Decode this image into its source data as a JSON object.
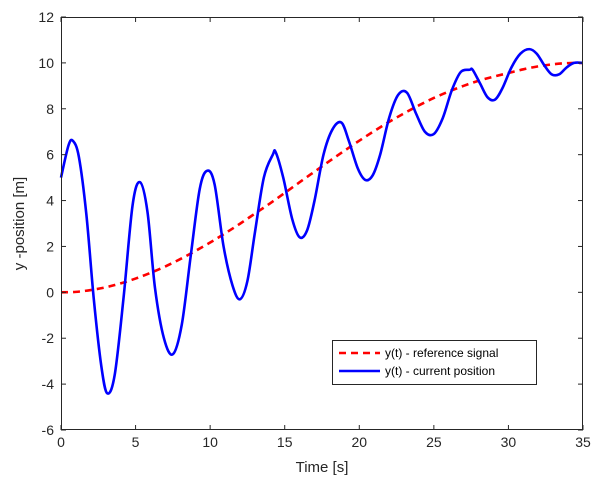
{
  "chart_data": {
    "type": "line",
    "title": "",
    "xlabel": "Time [s]",
    "ylabel": "y -position [m]",
    "xlim": [
      0,
      35
    ],
    "ylim": [
      -6,
      12
    ],
    "xticks": [
      0,
      5,
      10,
      15,
      20,
      25,
      30,
      35
    ],
    "yticks": [
      -6,
      -4,
      -2,
      0,
      2,
      4,
      6,
      8,
      10,
      12
    ],
    "grid": false,
    "legend_position": "bottom-right",
    "series": [
      {
        "name": "y(t) - reference signal",
        "style": "dashed",
        "color": "#ff0000",
        "x": [
          0,
          1,
          2,
          3,
          4,
          5,
          6,
          7,
          8,
          9,
          10,
          11,
          12,
          13,
          14,
          15,
          16,
          17,
          18,
          19,
          20,
          21,
          22,
          23,
          24,
          25,
          26,
          27,
          28,
          29,
          30,
          31,
          32,
          33,
          34,
          35
        ],
        "y": [
          0.0,
          0.02,
          0.1,
          0.22,
          0.39,
          0.6,
          0.85,
          1.13,
          1.45,
          1.8,
          2.17,
          2.57,
          2.99,
          3.43,
          3.87,
          4.33,
          4.8,
          5.26,
          5.72,
          6.17,
          6.61,
          7.03,
          7.43,
          7.8,
          8.15,
          8.47,
          8.75,
          9.0,
          9.22,
          9.4,
          9.56,
          9.72,
          9.85,
          9.94,
          9.99,
          10.0
        ]
      },
      {
        "name": "y(t) - current position",
        "style": "solid",
        "color": "#0000ff",
        "x": [
          0,
          0.5,
          0.8,
          1.2,
          1.7,
          2.2,
          2.7,
          3.1,
          3.6,
          4.2,
          4.8,
          5.3,
          5.8,
          6.3,
          6.9,
          7.5,
          8.1,
          8.7,
          9.3,
          9.8,
          10.3,
          10.9,
          11.5,
          12.0,
          12.5,
          13.0,
          13.6,
          14.2,
          14.4,
          14.9,
          15.5,
          16.0,
          16.5,
          17.0,
          17.6,
          18.2,
          18.8,
          19.3,
          19.9,
          20.4,
          20.9,
          21.4,
          22.0,
          22.6,
          23.2,
          23.8,
          24.4,
          25.0,
          25.6,
          26.2,
          26.8,
          27.4,
          27.6,
          28.1,
          28.6,
          29.1,
          29.6,
          30.2,
          30.8,
          31.4,
          31.9,
          32.4,
          32.9,
          33.4,
          33.9,
          34.4,
          35.0
        ],
        "y": [
          5.0,
          6.4,
          6.6,
          5.9,
          3.4,
          -0.3,
          -3.2,
          -4.4,
          -3.6,
          -0.2,
          3.8,
          4.8,
          3.5,
          0.2,
          -2.0,
          -2.7,
          -1.4,
          1.6,
          4.5,
          5.3,
          4.7,
          2.0,
          0.3,
          -0.3,
          0.5,
          2.6,
          5.0,
          6.0,
          6.1,
          5.0,
          3.2,
          2.4,
          2.7,
          4.0,
          6.0,
          7.1,
          7.4,
          6.6,
          5.4,
          4.9,
          5.1,
          6.0,
          7.6,
          8.6,
          8.7,
          7.8,
          7.0,
          6.9,
          7.6,
          8.8,
          9.6,
          9.7,
          9.7,
          9.1,
          8.5,
          8.4,
          8.9,
          9.8,
          10.4,
          10.6,
          10.4,
          9.9,
          9.5,
          9.5,
          9.8,
          10.0,
          10.0
        ]
      }
    ]
  }
}
